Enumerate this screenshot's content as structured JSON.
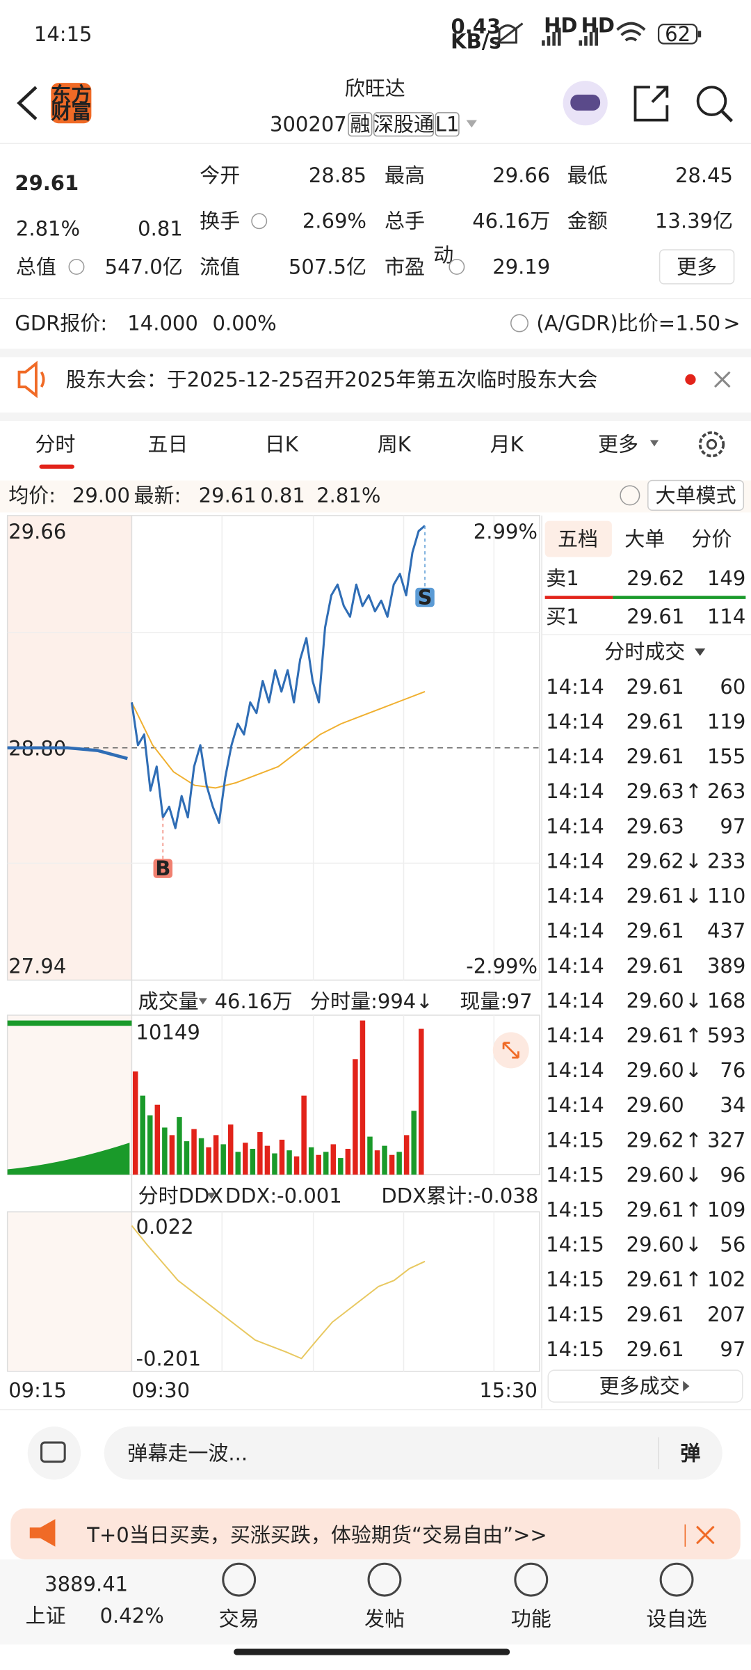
{
  "status_bar": {
    "time": "14:15",
    "speed_value": "0.43",
    "speed_unit": "KB/s",
    "network": [
      "HD",
      "HD"
    ],
    "battery": "62"
  },
  "header": {
    "logo": [
      "东方",
      "财富"
    ],
    "name": "欣旺达",
    "code": "300207",
    "tags": [
      "融",
      "深股通",
      "L1"
    ]
  },
  "quote": {
    "price": "29.61",
    "change_pct": "2.81%",
    "change": "0.81",
    "fields": [
      [
        {
          "label": "今开",
          "value": "28.85",
          "color": "#e2231a"
        },
        {
          "label": "最高",
          "value": "29.66",
          "color": "#e2231a"
        },
        {
          "label": "最低",
          "value": "28.45",
          "color": "#1a9a2a"
        }
      ],
      [
        {
          "label": "换手",
          "value": "2.69%",
          "color": "#222222"
        },
        {
          "label": "总手",
          "value": "46.16万",
          "color": "#222222"
        },
        {
          "label": "金额",
          "value": "13.39亿",
          "color": "#222222"
        }
      ],
      [
        {
          "label": "流值",
          "value": "507.5亿",
          "color": "#222222"
        },
        {
          "label": "市盈",
          "sup": "动",
          "value": "29.19",
          "color": "#222222"
        }
      ]
    ],
    "total_value": {
      "label": "总值",
      "value": "547.0亿"
    },
    "more": "更多"
  },
  "gdr": {
    "label": "GDR报价:",
    "price": "14.000",
    "change": "0.00%",
    "ratio_label": "(A/GDR)比价=",
    "ratio": "1.50",
    "arrow": ">"
  },
  "notice": {
    "text": "股东大会：于2025-12-25召开2025年第五次临时股东大会"
  },
  "tabs": {
    "items": [
      "分时",
      "五日",
      "日K",
      "周K",
      "月K",
      "更多"
    ],
    "active": 0
  },
  "info_bar": {
    "avg_label": "均价:",
    "avg": "29.00",
    "last_label": "最新:",
    "last": "29.61",
    "change": "0.81",
    "change_pct": "2.81%",
    "mode": "大单模式"
  },
  "intraday": {
    "y_top": "29.66",
    "y_bottom": "27.94",
    "pct_top": "2.99%",
    "pct_bottom": "-2.99%",
    "y_mid": "28.80",
    "ylim": [
      27.94,
      29.66
    ],
    "prev_close": 28.8,
    "premarket": [
      28.8,
      28.8,
      28.8,
      28.79,
      28.76
    ],
    "price": [
      28.97,
      28.81,
      28.85,
      28.64,
      28.73,
      28.54,
      28.58,
      28.5,
      28.62,
      28.54,
      28.73,
      28.81,
      28.66,
      28.58,
      28.52,
      28.69,
      28.81,
      28.89,
      28.85,
      28.97,
      28.93,
      29.05,
      28.97,
      29.09,
      29.01,
      29.09,
      28.97,
      29.13,
      29.21,
      29.05,
      28.97,
      29.25,
      29.37,
      29.41,
      29.33,
      29.29,
      29.41,
      29.33,
      29.37,
      29.31,
      29.35,
      29.29,
      29.41,
      29.45,
      29.37,
      29.53,
      29.61,
      29.63
    ],
    "avg": [
      28.97,
      28.81,
      28.71,
      28.66,
      28.65,
      28.67,
      28.7,
      28.73,
      28.79,
      28.85,
      28.89,
      28.92,
      28.95,
      28.98,
      29.01
    ],
    "buy_marker": "B",
    "sell_marker": "S",
    "time_labels": [
      "09:15",
      "09:30",
      "15:30"
    ]
  },
  "volume": {
    "label": "成交量",
    "total": "46.16万",
    "tick_label": "分时量:994↓",
    "current_label": "现量:",
    "current": "97",
    "max_label": "10149",
    "ylim": [
      0,
      10149
    ],
    "values": [
      6800,
      5200,
      3900,
      4600,
      3100,
      2600,
      3800,
      2200,
      3000,
      2400,
      1800,
      2600,
      2000,
      3300,
      1500,
      2100,
      1700,
      2800,
      1900,
      1400,
      2300,
      1600,
      1200,
      5200,
      1800,
      1300,
      1500,
      2000,
      1100,
      1700,
      7600,
      10149,
      2500,
      1600,
      1900,
      1300,
      1500,
      2600,
      4200,
      9600
    ],
    "colors": [
      "#e2231a",
      "#1a9a2a",
      "#1a9a2a",
      "#e2231a",
      "#1a9a2a",
      "#e2231a",
      "#1a9a2a",
      "#1a9a2a",
      "#e2231a",
      "#1a9a2a",
      "#e2231a",
      "#e2231a",
      "#1a9a2a",
      "#e2231a",
      "#1a9a2a",
      "#e2231a",
      "#1a9a2a",
      "#e2231a",
      "#e2231a",
      "#1a9a2a",
      "#e2231a",
      "#1a9a2a",
      "#e2231a",
      "#e2231a",
      "#1a9a2a",
      "#e2231a",
      "#1a9a2a",
      "#e2231a",
      "#1a9a2a",
      "#e2231a",
      "#e2231a",
      "#e2231a",
      "#1a9a2a",
      "#e2231a",
      "#1a9a2a",
      "#e2231a",
      "#1a9a2a",
      "#e2231a",
      "#1a9a2a",
      "#e2231a"
    ]
  },
  "ddx": {
    "label": "分时DDX",
    "ddx": "DDX:-0.001",
    "cum": "DDX累计:-0.038",
    "top_label": "0.022",
    "bottom_label": "-0.201",
    "ylim": [
      -0.201,
      0.022
    ],
    "values": [
      0.022,
      -0.01,
      -0.04,
      -0.07,
      -0.09,
      -0.11,
      -0.13,
      -0.15,
      -0.17,
      -0.18,
      -0.19,
      -0.201,
      -0.17,
      -0.14,
      -0.12,
      -0.1,
      -0.08,
      -0.07,
      -0.05,
      -0.038
    ]
  },
  "order_book": {
    "tabs": [
      "五档",
      "大单",
      "分价"
    ],
    "rows": [
      {
        "label": "卖1",
        "price": "29.62",
        "volume": "149"
      },
      {
        "label": "买1",
        "price": "29.61",
        "volume": "114"
      }
    ],
    "trades_title": "分时成交",
    "trades": [
      {
        "time": "14:14",
        "price": "29.61",
        "volume": "60",
        "color": "#e2231a"
      },
      {
        "time": "14:14",
        "price": "29.61",
        "volume": "119",
        "color": "#e2231a"
      },
      {
        "time": "14:14",
        "price": "29.61",
        "volume": "155",
        "color": "#e2231a"
      },
      {
        "time": "14:14",
        "price": "29.63",
        "arrow": "↑",
        "volume": "263",
        "color": "#e2231a"
      },
      {
        "time": "14:14",
        "price": "29.63",
        "volume": "97",
        "color": "#e2231a"
      },
      {
        "time": "14:14",
        "price": "29.62",
        "arrow": "↓",
        "volume": "233",
        "color": "#1a9a2a"
      },
      {
        "time": "14:14",
        "price": "29.61",
        "arrow": "↓",
        "volume": "110",
        "color": "#1a9a2a"
      },
      {
        "time": "14:14",
        "price": "29.61",
        "volume": "437",
        "color": "#1a9a2a"
      },
      {
        "time": "14:14",
        "price": "29.61",
        "volume": "389",
        "color": "#1a9a2a"
      },
      {
        "time": "14:14",
        "price": "29.60",
        "arrow": "↓",
        "volume": "168",
        "color": "#1a9a2a"
      },
      {
        "time": "14:14",
        "price": "29.61",
        "arrow": "↑",
        "volume": "593",
        "color": "#e2231a"
      },
      {
        "time": "14:14",
        "price": "29.60",
        "arrow": "↓",
        "volume": "76",
        "color": "#1a9a2a"
      },
      {
        "time": "14:14",
        "price": "29.60",
        "volume": "34",
        "color": "#e2231a"
      },
      {
        "time": "14:15",
        "price": "29.62",
        "arrow": "↑",
        "volume": "327",
        "color": "#e2231a"
      },
      {
        "time": "14:15",
        "price": "29.60",
        "arrow": "↓",
        "volume": "96",
        "color": "#1a9a2a"
      },
      {
        "time": "14:15",
        "price": "29.61",
        "arrow": "↑",
        "volume": "109",
        "color": "#e2231a"
      },
      {
        "time": "14:15",
        "price": "29.60",
        "arrow": "↓",
        "volume": "56",
        "color": "#1a9a2a"
      },
      {
        "time": "14:15",
        "price": "29.61",
        "arrow": "↑",
        "volume": "102",
        "color": "#e2231a"
      },
      {
        "time": "14:15",
        "price": "29.61",
        "volume": "207",
        "color": "#e2231a"
      },
      {
        "time": "14:15",
        "price": "29.61",
        "volume": "97",
        "color": "#1a9a2a"
      }
    ],
    "more": "更多成交"
  },
  "bottom": {
    "comment_placeholder": "弹幕走一波...",
    "danmu": "弹",
    "ad": "T+0当日买卖，买涨买跌，体验期货“交易自由”>>",
    "index": {
      "value": "3889.41",
      "name": "上证",
      "change": "0.42%"
    },
    "nav": [
      "交易",
      "发帖",
      "功能",
      "设自选"
    ]
  }
}
